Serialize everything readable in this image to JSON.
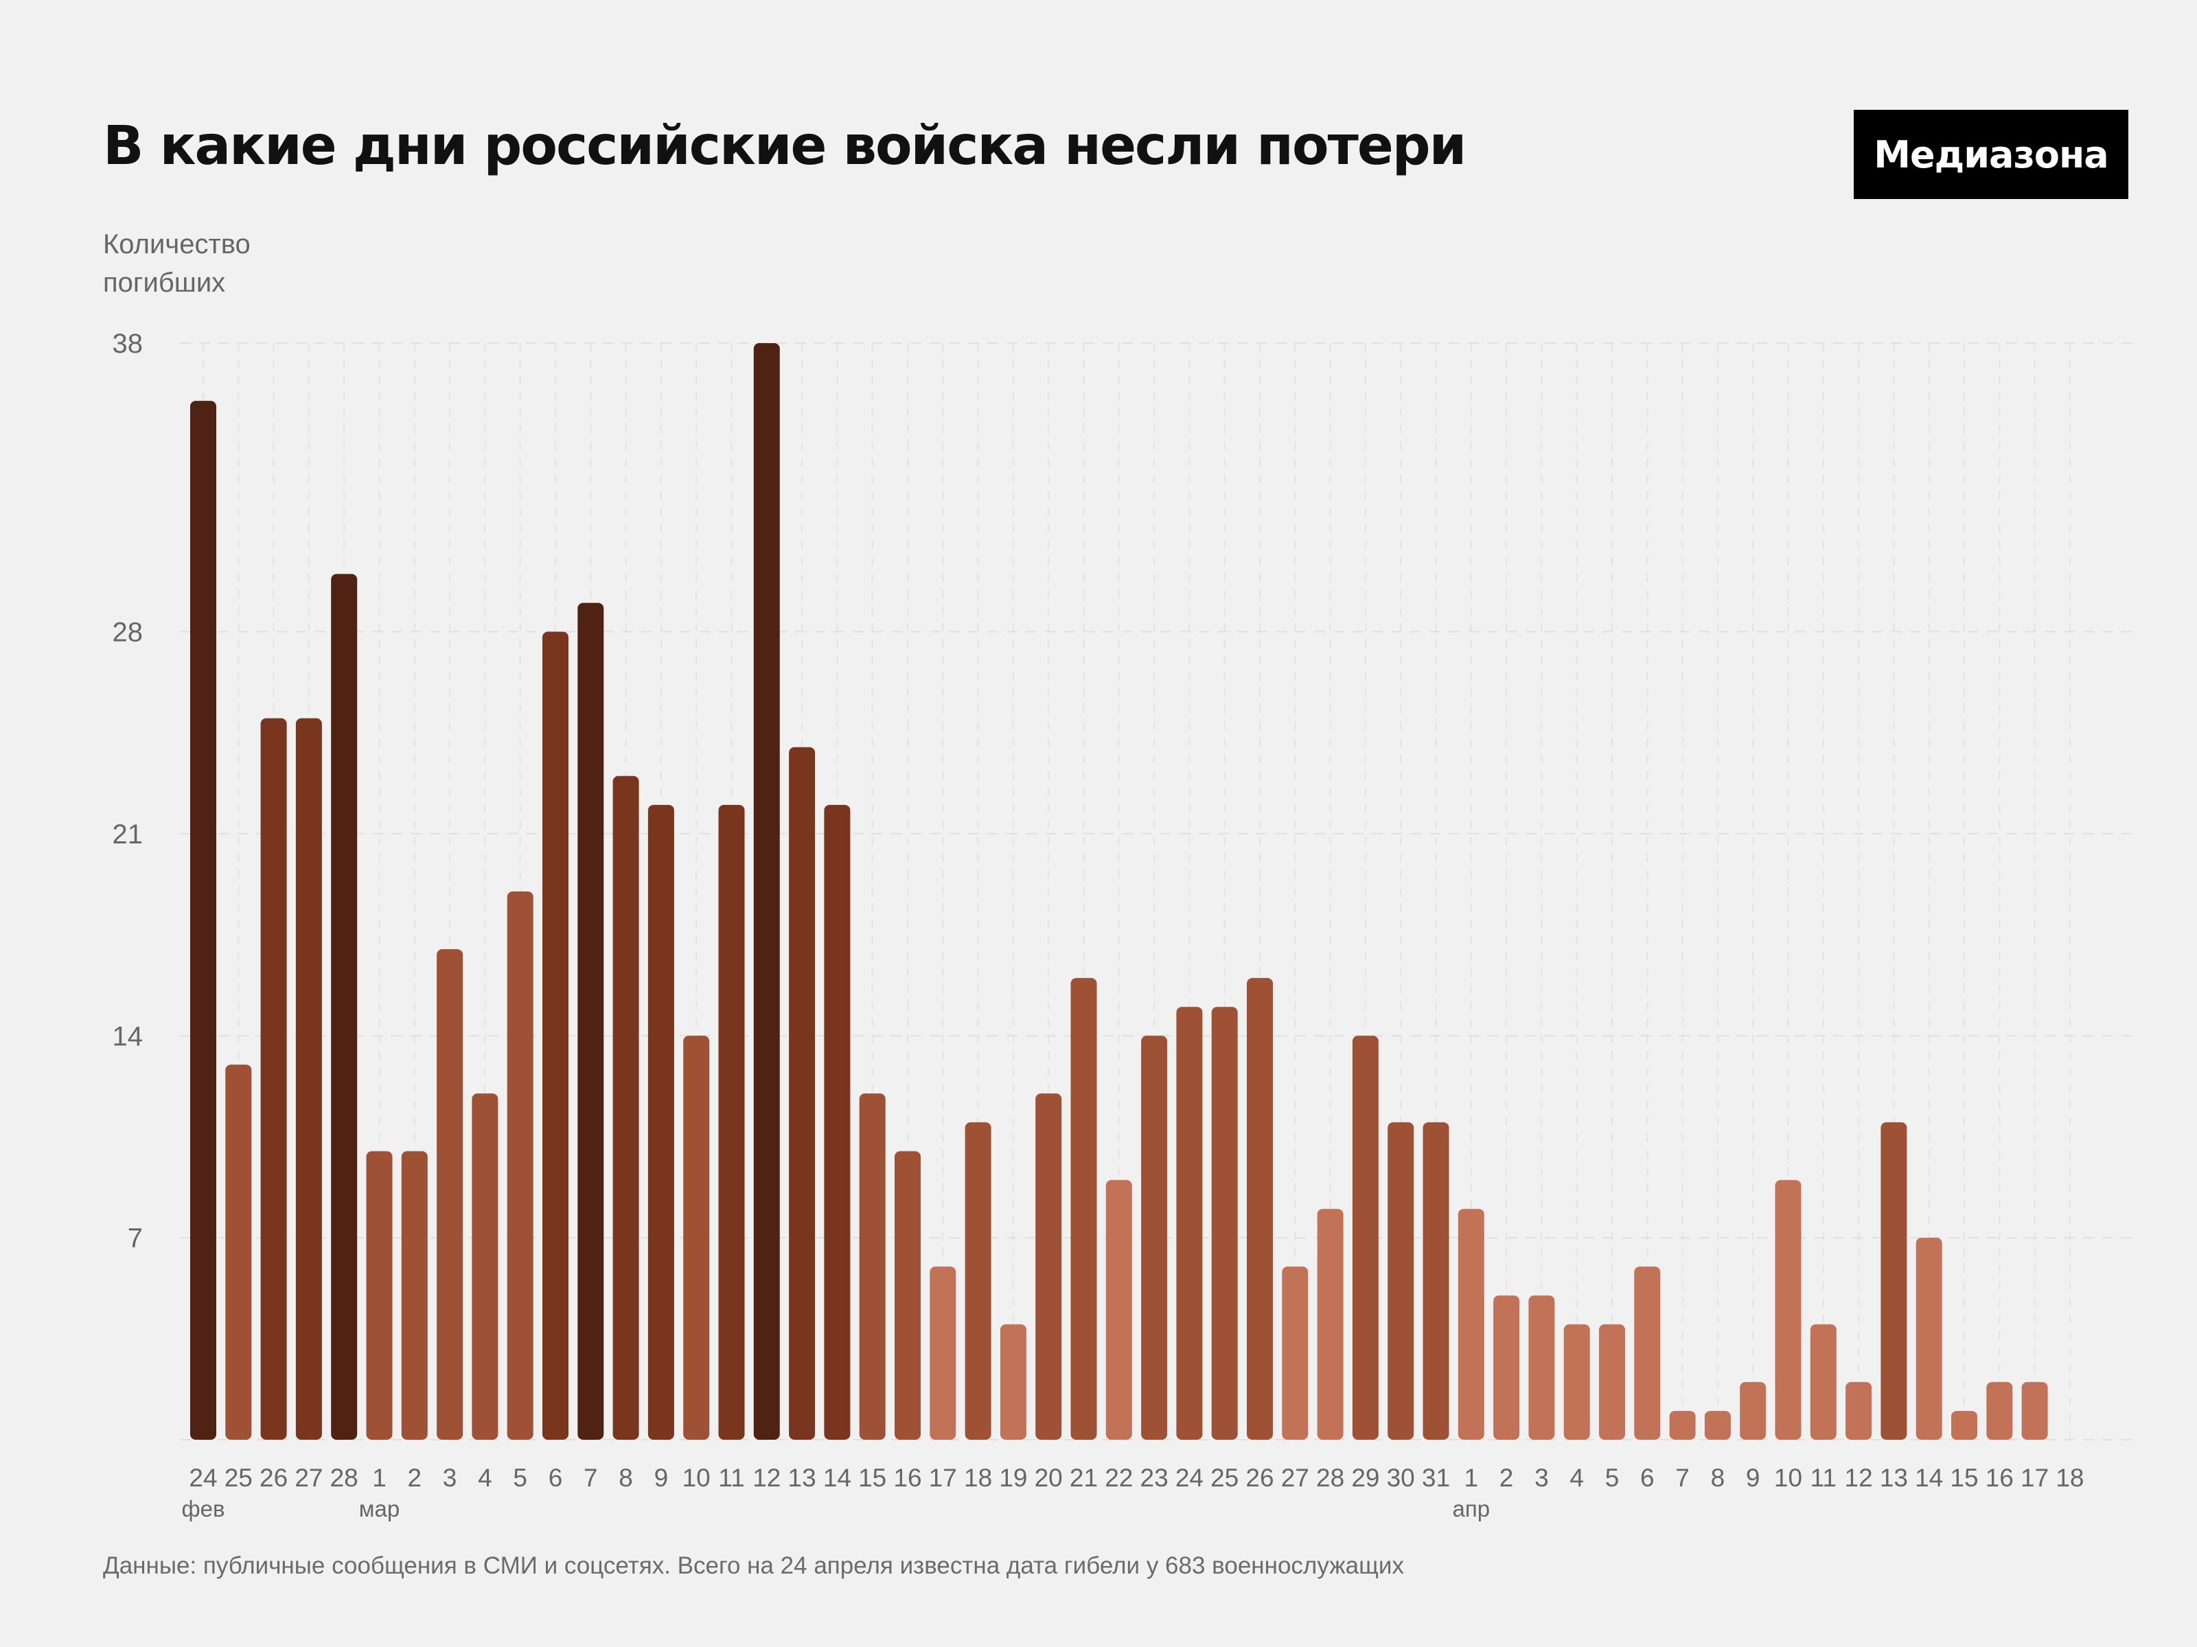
{
  "title": "В какие дни российские войска несли потери",
  "brand": "Медиазона",
  "y_axis_label": [
    "Количество",
    "погибших"
  ],
  "footnote": "Данные: публичные сообщения в СМИ и соцсетях. Всего на 24 апреля известна дата гибели у 683 военнослужащих",
  "chart_data": {
    "type": "bar",
    "title": "В какие дни российские войска несли потери",
    "ylabel": "Количество погибших",
    "ylim": [
      0,
      38
    ],
    "yticks": [
      7,
      14,
      21,
      28,
      38
    ],
    "grid": true,
    "categories": [
      "24",
      "25",
      "26",
      "27",
      "28",
      "1",
      "2",
      "3",
      "4",
      "5",
      "6",
      "7",
      "8",
      "9",
      "10",
      "11",
      "12",
      "13",
      "14",
      "15",
      "16",
      "17",
      "18",
      "19",
      "20",
      "21",
      "22",
      "23",
      "24",
      "25",
      "26",
      "27",
      "28",
      "29",
      "30",
      "31",
      "1",
      "2",
      "3",
      "4",
      "5",
      "6",
      "7",
      "8",
      "9",
      "10",
      "11",
      "12",
      "13",
      "14",
      "15",
      "16",
      "17",
      "18"
    ],
    "month_labels": [
      {
        "index": 0,
        "label": "фев"
      },
      {
        "index": 5,
        "label": "мар"
      },
      {
        "index": 36,
        "label": "апр"
      }
    ],
    "values": [
      36,
      13,
      25,
      25,
      30,
      10,
      10,
      17,
      12,
      19,
      28,
      29,
      23,
      22,
      14,
      22,
      38,
      24,
      22,
      12,
      10,
      6,
      11,
      4,
      12,
      16,
      9,
      14,
      15,
      15,
      16,
      6,
      8,
      14,
      11,
      11,
      8,
      5,
      5,
      4,
      4,
      6,
      1,
      1,
      2,
      9,
      4,
      2,
      11,
      7,
      1,
      2,
      2,
      0
    ],
    "color_scale": [
      {
        "min": 29,
        "color": "#4f2213"
      },
      {
        "min": 20,
        "color": "#7a351f"
      },
      {
        "min": 10,
        "color": "#9e5134"
      },
      {
        "min": 0,
        "color": "#c27257"
      }
    ]
  }
}
